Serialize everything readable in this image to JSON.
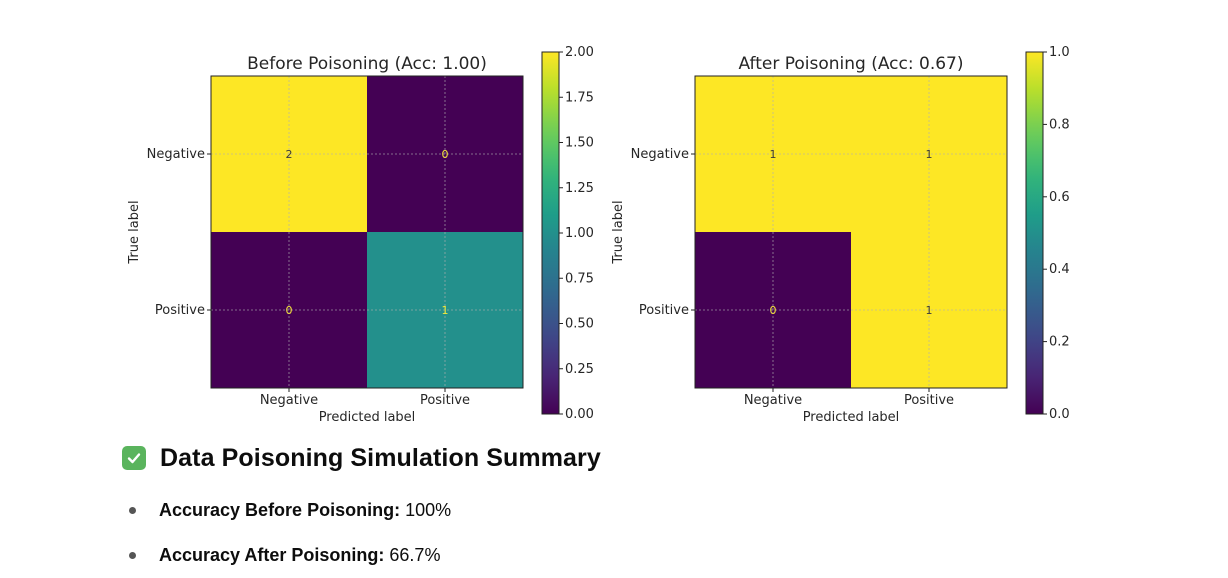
{
  "chart_data": [
    {
      "type": "heatmap",
      "title": "Before Poisoning (Acc: 1.00)",
      "xlabel": "Predicted label",
      "ylabel": "True label",
      "x_categories": [
        "Negative",
        "Positive"
      ],
      "y_categories": [
        "Negative",
        "Positive"
      ],
      "matrix": [
        [
          2,
          0
        ],
        [
          0,
          1
        ]
      ],
      "colormap": "viridis",
      "vmin": 0,
      "vmax": 2,
      "colorbar_ticks": [
        "0.00",
        "0.25",
        "0.50",
        "0.75",
        "1.00",
        "1.25",
        "1.50",
        "1.75",
        "2.00"
      ],
      "grid": true
    },
    {
      "type": "heatmap",
      "title": "After Poisoning (Acc: 0.67)",
      "xlabel": "Predicted label",
      "ylabel": "True label",
      "x_categories": [
        "Negative",
        "Positive"
      ],
      "y_categories": [
        "Negative",
        "Positive"
      ],
      "matrix": [
        [
          1,
          1
        ],
        [
          0,
          1
        ]
      ],
      "colormap": "viridis",
      "vmin": 0,
      "vmax": 1,
      "colorbar_ticks": [
        "0.0",
        "0.2",
        "0.4",
        "0.6",
        "0.8",
        "1.0"
      ],
      "grid": true
    }
  ],
  "summary": {
    "icon": "check-mark-icon",
    "title": "Data Poisoning Simulation Summary",
    "items": [
      {
        "label": "Accuracy Before Poisoning:",
        "value": "100%"
      },
      {
        "label": "Accuracy After Poisoning:",
        "value": "66.7%"
      }
    ]
  }
}
